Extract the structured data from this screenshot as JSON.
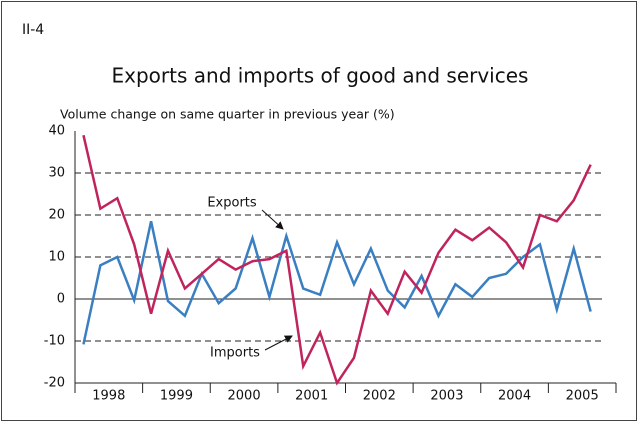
{
  "chart_data": {
    "type": "line",
    "label": "II-4",
    "title": "Exports and imports of good and services",
    "y_label": "Volume change on same quarter in previous year (%)",
    "years": [
      "1998",
      "1999",
      "2000",
      "2001",
      "2002",
      "2003",
      "2004",
      "2005"
    ],
    "ylim": [
      -20,
      40
    ],
    "yticks": [
      -20,
      -10,
      0,
      10,
      20,
      30,
      40
    ],
    "grid": true,
    "series": [
      {
        "name": "Exports",
        "color": "#3a7fc1",
        "values": [
          -10.8,
          8,
          10,
          -0.3,
          18.5,
          -0.5,
          -4,
          6,
          -1,
          2.5,
          14.5,
          0.5,
          15,
          2.5,
          1,
          13.5,
          3.5,
          12,
          2,
          -2,
          5.5,
          -4,
          3.5,
          0.5,
          5,
          6,
          10,
          13,
          -2.5,
          12,
          -3
        ]
      },
      {
        "name": "Imports",
        "color": "#c0245c",
        "values": [
          39,
          21.5,
          24,
          13,
          -3.5,
          11.5,
          2.5,
          6,
          9.5,
          7,
          9,
          9.5,
          11.5,
          -16,
          -8,
          -20,
          -14,
          2,
          -3.5,
          6.5,
          1.5,
          11,
          16.5,
          14,
          17,
          13.5,
          7.5,
          20,
          18.5,
          23.5,
          32
        ]
      }
    ]
  }
}
